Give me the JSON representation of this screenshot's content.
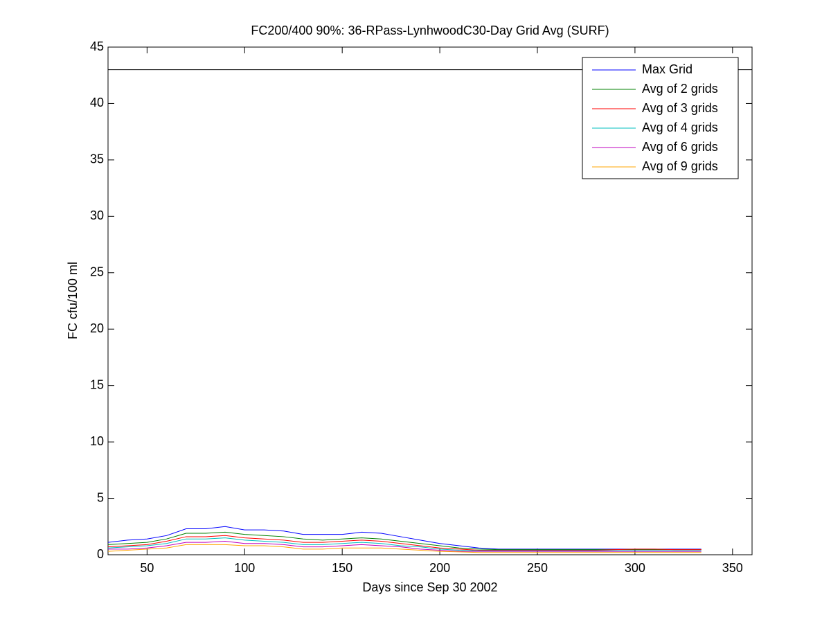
{
  "chart_data": {
    "type": "line",
    "title": "FC200/400 90%: 36-RPass-LynhwoodC30-Day Grid Avg (SURF)",
    "x_label": "Days since Sep 30 2002",
    "y_label": "FC cfu/100 ml",
    "x": [
      30,
      40,
      50,
      60,
      70,
      80,
      90,
      100,
      110,
      120,
      130,
      140,
      150,
      160,
      170,
      180,
      190,
      200,
      210,
      220,
      230,
      240,
      250,
      260,
      270,
      280,
      290,
      300,
      310,
      320,
      330,
      334
    ],
    "series": [
      {
        "name": "Max Grid",
        "color": "#0000ff",
        "values": [
          1.1,
          1.3,
          1.4,
          1.7,
          2.3,
          2.3,
          2.5,
          2.2,
          2.2,
          2.1,
          1.8,
          1.8,
          1.8,
          2.0,
          1.9,
          1.6,
          1.3,
          1.0,
          0.8,
          0.6,
          0.5,
          0.5,
          0.5,
          0.5,
          0.5,
          0.5,
          0.5,
          0.5,
          0.5,
          0.5,
          0.5,
          0.5
        ]
      },
      {
        "name": "Avg of 2 grids",
        "color": "#008000",
        "values": [
          0.9,
          1.0,
          1.1,
          1.4,
          1.9,
          1.9,
          2.0,
          1.8,
          1.7,
          1.6,
          1.4,
          1.3,
          1.4,
          1.5,
          1.4,
          1.2,
          1.0,
          0.8,
          0.6,
          0.5,
          0.45,
          0.45,
          0.45,
          0.45,
          0.45,
          0.45,
          0.45,
          0.45,
          0.45,
          0.45,
          0.45,
          0.45
        ]
      },
      {
        "name": "Avg of 3 grids",
        "color": "#ff0000",
        "values": [
          0.7,
          0.8,
          0.9,
          1.2,
          1.6,
          1.6,
          1.7,
          1.5,
          1.4,
          1.3,
          1.1,
          1.1,
          1.2,
          1.3,
          1.2,
          1.0,
          0.8,
          0.6,
          0.5,
          0.4,
          0.4,
          0.4,
          0.4,
          0.4,
          0.4,
          0.4,
          0.45,
          0.5,
          0.5,
          0.45,
          0.45,
          0.45
        ]
      },
      {
        "name": "Avg of 4 grids",
        "color": "#00bfbf",
        "values": [
          0.6,
          0.7,
          0.8,
          1.0,
          1.4,
          1.4,
          1.5,
          1.3,
          1.2,
          1.1,
          0.9,
          0.9,
          1.0,
          1.1,
          1.0,
          0.8,
          0.7,
          0.5,
          0.4,
          0.35,
          0.35,
          0.35,
          0.35,
          0.35,
          0.35,
          0.35,
          0.35,
          0.35,
          0.35,
          0.35,
          0.35,
          0.35
        ]
      },
      {
        "name": "Avg of 6 grids",
        "color": "#bf00bf",
        "values": [
          0.5,
          0.5,
          0.6,
          0.8,
          1.1,
          1.1,
          1.2,
          1.0,
          1.0,
          0.9,
          0.7,
          0.7,
          0.8,
          0.9,
          0.8,
          0.7,
          0.5,
          0.4,
          0.3,
          0.3,
          0.3,
          0.3,
          0.3,
          0.3,
          0.3,
          0.3,
          0.3,
          0.3,
          0.3,
          0.3,
          0.3,
          0.3
        ]
      },
      {
        "name": "Avg of 9 grids",
        "color": "#ffa500",
        "values": [
          0.3,
          0.4,
          0.5,
          0.6,
          0.9,
          0.9,
          0.9,
          0.8,
          0.8,
          0.7,
          0.5,
          0.5,
          0.6,
          0.6,
          0.6,
          0.5,
          0.4,
          0.3,
          0.25,
          0.2,
          0.2,
          0.2,
          0.2,
          0.2,
          0.2,
          0.2,
          0.2,
          0.2,
          0.2,
          0.2,
          0.2,
          0.2
        ]
      }
    ],
    "reference_line": 43,
    "reference_color": "#000000",
    "xlim": [
      30,
      360
    ],
    "xticks": [
      50,
      100,
      150,
      200,
      250,
      300,
      350
    ],
    "ylim": [
      0,
      45
    ],
    "yticks": [
      0,
      5,
      10,
      15,
      20,
      25,
      30,
      35,
      40,
      45
    ],
    "grid": false,
    "legend": "upper right"
  }
}
